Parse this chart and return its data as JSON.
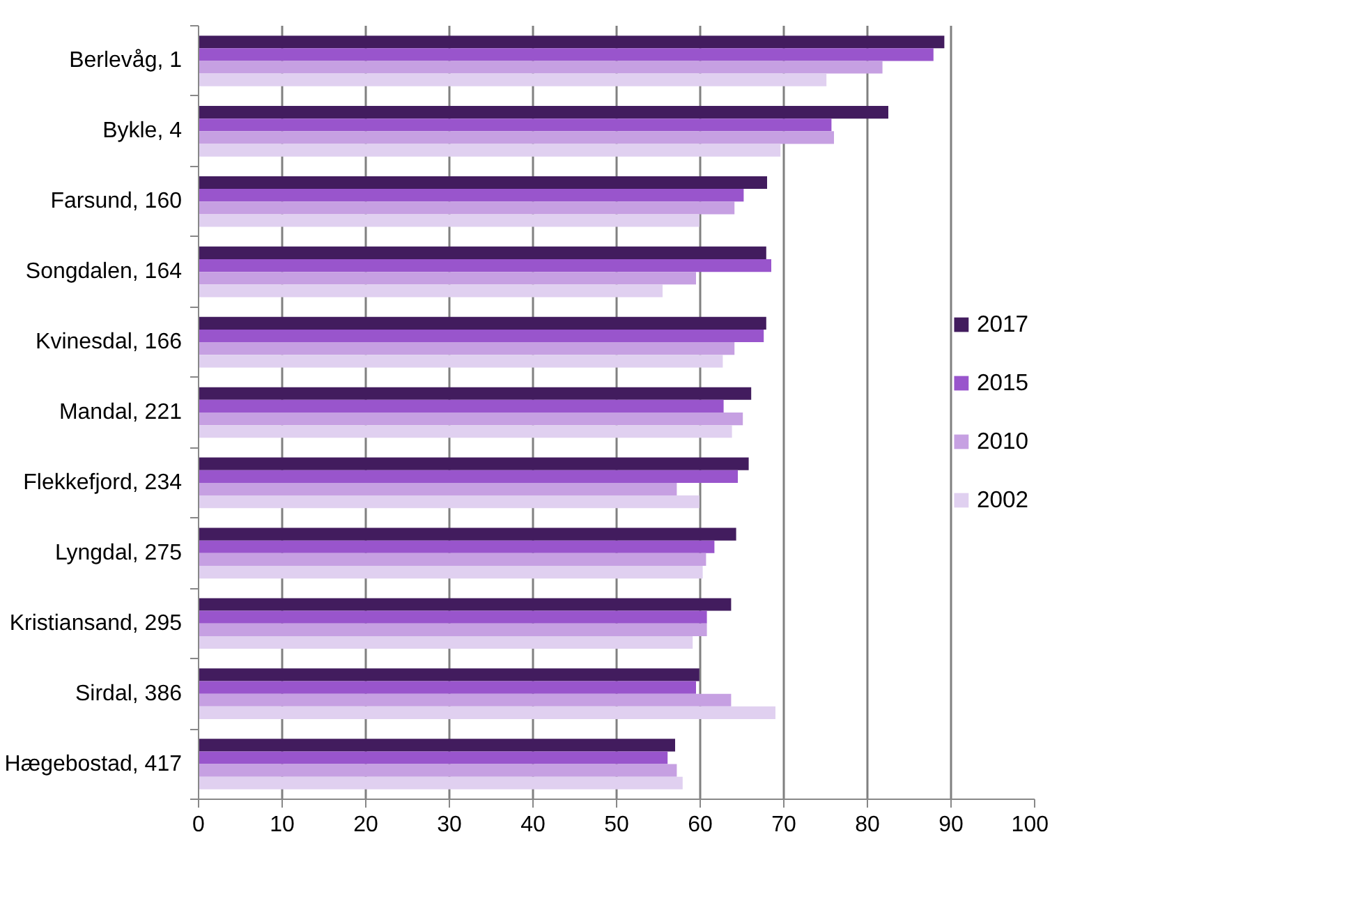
{
  "chart_data": {
    "type": "bar",
    "orientation": "horizontal",
    "categories": [
      "Berlevåg, 1",
      "Bykle, 4",
      "Farsund, 160",
      "Songdalen, 164",
      "Kvinesdal, 166",
      "Mandal, 221",
      "Flekkefjord, 234",
      "Lyngdal, 275",
      "Kristiansand, 295",
      "Sirdal, 386",
      "Hægebostad, 417"
    ],
    "series": [
      {
        "name": "2017",
        "color": "#421c5e",
        "values": [
          89.2,
          82.5,
          68.0,
          67.9,
          67.9,
          66.1,
          65.8,
          64.3,
          63.7,
          59.9,
          57.0
        ]
      },
      {
        "name": "2015",
        "color": "#9955cc",
        "values": [
          87.9,
          75.7,
          65.2,
          68.5,
          67.6,
          62.8,
          64.5,
          61.7,
          60.8,
          59.5,
          56.1
        ]
      },
      {
        "name": "2010",
        "color": "#c6a0e2",
        "values": [
          81.8,
          76.0,
          64.1,
          59.5,
          64.1,
          65.1,
          57.2,
          60.7,
          60.8,
          63.7,
          57.2
        ]
      },
      {
        "name": "2002",
        "color": "#e0d0f0",
        "values": [
          75.1,
          69.6,
          59.9,
          55.5,
          62.7,
          63.8,
          59.9,
          60.3,
          59.1,
          69.0,
          57.9
        ]
      }
    ],
    "xlim": [
      0,
      100
    ],
    "xticks": [
      0,
      10,
      20,
      30,
      40,
      50,
      60,
      70,
      80,
      90,
      100
    ],
    "grid": "x",
    "legend": "right"
  }
}
